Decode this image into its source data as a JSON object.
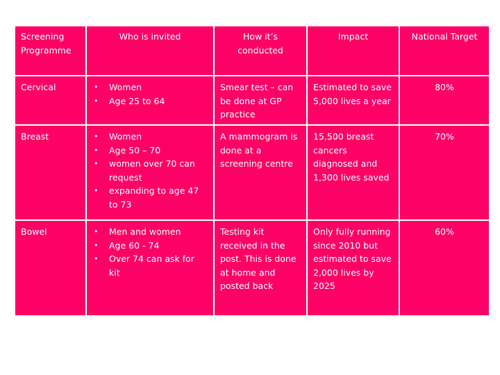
{
  "table": {
    "headers": [
      "Screening Programme",
      "Who is invited",
      "How it’s conducted",
      "Impact",
      "National Target"
    ],
    "rows": [
      {
        "programme": "Cervical",
        "invited": [
          "Women",
          "Age 25 to 64"
        ],
        "conducted": "Smear test – can be done at GP practice",
        "impact": "Estimated to save 5,000 lives a year",
        "target": "80%"
      },
      {
        "programme": "Breast",
        "invited": [
          "Women",
          "Age 50 – 70",
          "women over 70 can request",
          "expanding to age 47 to 73"
        ],
        "conducted": "A mammogram is done at a screening centre",
        "impact": "15,500 breast cancers diagnosed and 1,300 lives saved",
        "target": "70%"
      },
      {
        "programme": "Bowel",
        "invited": [
          "Men and women",
          "Age 60 - 74",
          "Over 74 can ask for kit"
        ],
        "conducted": "Testing kit received in the post. This is done at home and posted back",
        "impact": "Only fully running since 2010 but estimated to save 2,000 lives by 2025",
        "target": "60%"
      }
    ]
  },
  "colors": {
    "cell_bg": "#ff0066",
    "text": "#ffffff",
    "border": "#ffffff"
  }
}
